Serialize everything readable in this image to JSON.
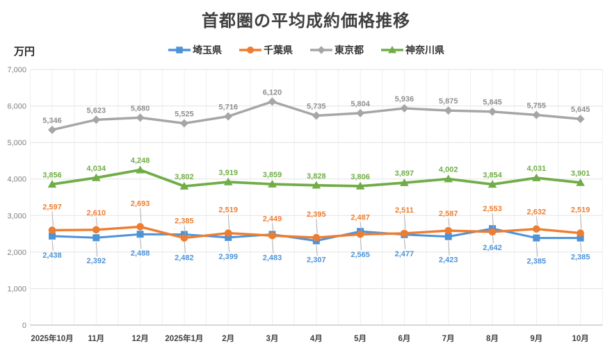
{
  "title": "首都圏の平均成約価格推移",
  "y_axis_unit": "万円",
  "chart_data": {
    "type": "line",
    "title": "首都圏の平均成約価格推移",
    "ylabel": "万円",
    "xlabel": "",
    "ylim": [
      0,
      7000
    ],
    "y_ticks": [
      0,
      1000,
      2000,
      3000,
      4000,
      5000,
      6000,
      7000
    ],
    "grid": true,
    "legend_position": "top",
    "categories": [
      "2025年10月",
      "11月",
      "12月",
      "2025年1月",
      "2月",
      "3月",
      "4月",
      "5月",
      "6月",
      "7月",
      "8月",
      "9月",
      "10月"
    ],
    "series": [
      {
        "name": "埼玉県",
        "color": "#4d93d8",
        "marker": "square",
        "label_position": "below",
        "label_leader": true,
        "values": [
          2438,
          2392,
          2488,
          2482,
          2399,
          2483,
          2307,
          2565,
          2477,
          2423,
          2642,
          2385,
          2385
        ]
      },
      {
        "name": "千葉県",
        "color": "#ed7d31",
        "marker": "circle",
        "label_position": "above",
        "label_leader": true,
        "values": [
          2597,
          2610,
          2693,
          2385,
          2519,
          2449,
          2395,
          2487,
          2511,
          2587,
          2553,
          2632,
          2519
        ]
      },
      {
        "name": "東京都",
        "color": "#a6a6a6",
        "label_color": "#8f8f8f",
        "marker": "diamond",
        "label_position": "above",
        "label_leader": false,
        "values": [
          5346,
          5623,
          5680,
          5525,
          5716,
          6120,
          5735,
          5804,
          5936,
          5875,
          5845,
          5755,
          5645
        ]
      },
      {
        "name": "神奈川県",
        "color": "#70ad47",
        "marker": "triangle",
        "label_position": "above",
        "label_leader": false,
        "values": [
          3856,
          4034,
          4248,
          3802,
          3919,
          3859,
          3828,
          3806,
          3897,
          4002,
          3854,
          4031,
          3901
        ]
      }
    ],
    "colors": {
      "gridline_vertical": "#efefef",
      "gridline_horizontal": "#e3e3e3",
      "axis_line": "#c9c9c9",
      "leader_line": "#b3b3b3",
      "y_tick_text": "#7f7f7f",
      "x_tick_text": "#404040",
      "title_text": "#3f3f3f"
    }
  }
}
